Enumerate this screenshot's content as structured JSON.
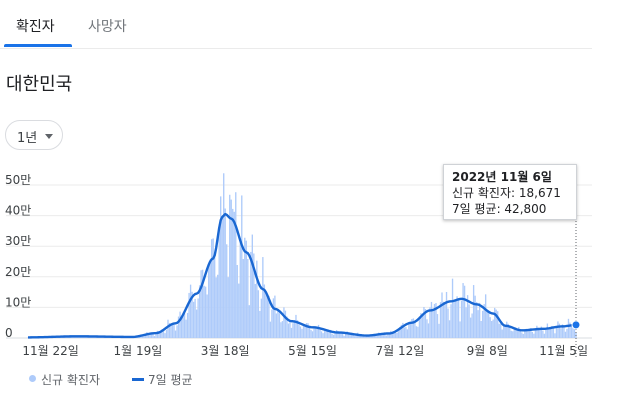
{
  "tabs": [
    {
      "label": "확진자",
      "active": true
    },
    {
      "label": "사망자",
      "active": false
    }
  ],
  "region": "대한민국",
  "period_selector": {
    "value": "1년"
  },
  "colors": {
    "bars": "#aecbfa",
    "line": "#1967d2",
    "accent": "#1a73e8",
    "grid": "#ebebeb"
  },
  "tooltip": {
    "date": "2022년 11월 6일",
    "new_cases_label": "신규 확진자: 18,671",
    "avg_label": "7일 평균: 42,800"
  },
  "legend": {
    "bars": "신규 확진자",
    "line": "7일 평균"
  },
  "chart_data": {
    "type": "bar",
    "unit_note": "y values in persons (만 = 10,000)",
    "y_ticks": [
      "0",
      "10만",
      "20만",
      "30만",
      "40만",
      "50만"
    ],
    "ylim": [
      0,
      550000
    ],
    "x_ticks": [
      "11월 22일",
      "1월 19일",
      "3월 18일",
      "5월 15일",
      "7월 12일",
      "9월 8일",
      "11월 5일"
    ],
    "x_start": "2021-11-07",
    "x_end": "2022-11-06",
    "grid": true,
    "legend_position": "bottom-left",
    "series": [
      {
        "name": "신규 확진자",
        "type": "bar"
      },
      {
        "name": "7일 평균",
        "type": "line"
      }
    ],
    "avg_keypoints": [
      [
        "2021-11-07",
        2000
      ],
      [
        "2021-12-10",
        5500
      ],
      [
        "2022-01-15",
        3500
      ],
      [
        "2022-01-31",
        16000
      ],
      [
        "2022-02-13",
        48000
      ],
      [
        "2022-02-27",
        145000
      ],
      [
        "2022-03-10",
        260000
      ],
      [
        "2022-03-16",
        395000
      ],
      [
        "2022-03-18",
        405000
      ],
      [
        "2022-03-22",
        390000
      ],
      [
        "2022-04-01",
        280000
      ],
      [
        "2022-04-12",
        160000
      ],
      [
        "2022-04-20",
        95000
      ],
      [
        "2022-05-01",
        55000
      ],
      [
        "2022-05-15",
        35000
      ],
      [
        "2022-06-01",
        18000
      ],
      [
        "2022-06-20",
        8000
      ],
      [
        "2022-07-05",
        15000
      ],
      [
        "2022-07-20",
        50000
      ],
      [
        "2022-08-01",
        90000
      ],
      [
        "2022-08-15",
        120000
      ],
      [
        "2022-08-22",
        128000
      ],
      [
        "2022-09-01",
        110000
      ],
      [
        "2022-09-12",
        80000
      ],
      [
        "2022-09-20",
        40000
      ],
      [
        "2022-10-01",
        25000
      ],
      [
        "2022-10-15",
        30000
      ],
      [
        "2022-10-28",
        38000
      ],
      [
        "2022-11-06",
        42800
      ]
    ],
    "selected_point": {
      "date": "2022-11-06",
      "new_cases": 18671,
      "avg_7day": 42800
    }
  }
}
